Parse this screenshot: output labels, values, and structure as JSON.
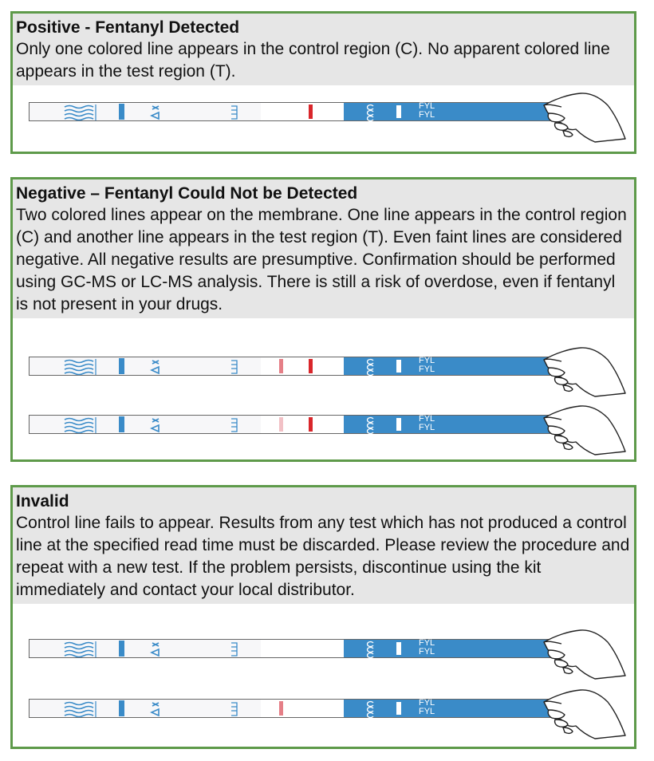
{
  "panels": [
    {
      "title": "Positive - Fentanyl Detected",
      "body": "Only one colored line appears in the control region (C). No apparent colored line appears in the test region (T).",
      "strips": [
        {
          "control_line": "solid",
          "test_line": "none"
        }
      ]
    },
    {
      "title": "Negative – Fentanyl Could Not be Detected",
      "body": "Two colored lines appear on the membrane. One line appears in the control region (C) and another line appears in the test region (T). Even faint lines are considered negative. All negative results are presumptive. Confirmation should be performed using GC-MS or LC-MS analysis. There is still a risk of overdose, even if fentanyl is not present in your drugs.",
      "strips": [
        {
          "control_line": "solid",
          "test_line": "medium"
        },
        {
          "control_line": "solid",
          "test_line": "faint"
        }
      ]
    },
    {
      "title": "Invalid",
      "body": "Control line fails to appear. Results from any test which has not produced a control line at the specified read time must be discarded. Please review the procedure and repeat with a new test. If the problem persists, discontinue using the kit immediately and contact your local distributor.",
      "strips": [
        {
          "control_line": "none",
          "test_line": "none"
        },
        {
          "control_line": "none",
          "test_line": "medium"
        }
      ]
    }
  ],
  "colors": {
    "panel_border": "#5e9a4a",
    "text_bg": "#e6e6e6",
    "strip_blue": "#3a8bc8",
    "line_solid": "#d9262b",
    "line_medium": "#e57f87",
    "line_faint": "#f2c1c6"
  },
  "strip_label_1": "FYL",
  "strip_label_2": "FYL"
}
